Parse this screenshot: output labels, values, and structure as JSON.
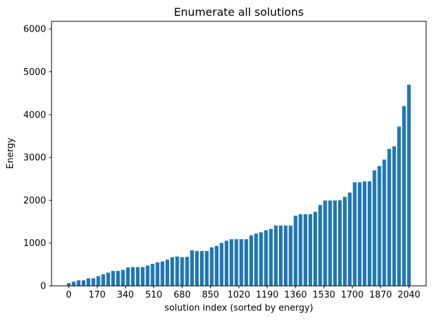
{
  "chart_data": {
    "type": "bar",
    "title": "Enumerate all solutions",
    "xlabel": "solution index (sorted by energy)",
    "ylabel": "Energy",
    "x_ticks": [
      0,
      170,
      340,
      510,
      680,
      850,
      1020,
      1190,
      1360,
      1530,
      1700,
      1870,
      2040
    ],
    "y_ticks": [
      0,
      1000,
      2000,
      3000,
      4000,
      5000,
      6000
    ],
    "xlim": [
      -103,
      2143
    ],
    "ylim": [
      0,
      6180
    ],
    "x_max_index": 2040,
    "bar_color": "#1f77b4",
    "axis_color": "#000000",
    "background_color": "#ffffff",
    "legend": "none",
    "grid": false,
    "values": [
      65,
      100,
      130,
      130,
      175,
      175,
      230,
      270,
      310,
      350,
      350,
      375,
      430,
      440,
      440,
      440,
      475,
      515,
      550,
      570,
      615,
      670,
      685,
      670,
      680,
      830,
      815,
      815,
      815,
      900,
      935,
      1005,
      1055,
      1090,
      1090,
      1090,
      1090,
      1180,
      1220,
      1250,
      1300,
      1330,
      1410,
      1410,
      1410,
      1410,
      1640,
      1675,
      1675,
      1675,
      1730,
      1890,
      1995,
      1995,
      1995,
      2000,
      2080,
      2180,
      2420,
      2420,
      2440,
      2440,
      2700,
      2800,
      2950,
      3200,
      3260,
      3720,
      4200,
      4700
    ]
  }
}
